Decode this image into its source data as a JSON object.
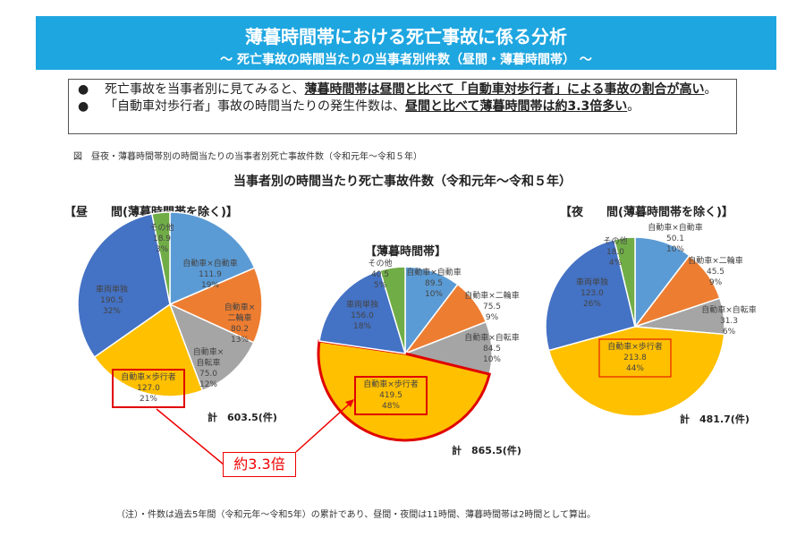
{
  "header": {
    "title": "薄暮時間帯における死亡事故に係る分析",
    "subtitle": "～ 死亡事故の時間当たりの当事者別件数（昼間・薄暮時間帯） ～"
  },
  "summary": [
    {
      "bullet": "●",
      "pre": "死亡事故を当事者別に見てみると、",
      "bold": "薄暮時間帯は昼間と比べて「自動車対歩行者」による事故の割合が高い",
      "post": "。"
    },
    {
      "bullet": "●",
      "pre": "「自動車対歩行者」事故の時間当たりの発生件数は、",
      "bold": "昼間と比べて薄暮時間帯は約3.3倍多い",
      "post": "。"
    }
  ],
  "figure_caption": "図　昼夜・薄暮時間帯別の時間当たりの当事者別死亡事故件数（令和元年～令和５年）",
  "note": "（注）・件数は過去5年間（令和元年～令和5年）の累計であり、昼間・夜間は11時間、薄暮時間帯は2時間として算出。",
  "annotation": "約3.3倍",
  "colors": {
    "自動車×自動車": "#5b9bd5",
    "自動車×二輪車": "#ed7d31",
    "自動車×自転車": "#a5a5a5",
    "自動車×歩行者": "#ffc000",
    "車両単独": "#4472c4",
    "その他": "#70ad47",
    "highlight": "#e00000"
  },
  "chart_data": {
    "type": "pie",
    "title": "当事者別の時間当たり死亡事故件数（令和元年～令和５年）",
    "categories": [
      "自動車×自動車",
      "自動車×二輪車",
      "自動車×自転車",
      "自動車×歩行者",
      "車両単独",
      "その他"
    ],
    "charts": [
      {
        "title": "【昼　　間(薄暮時間帯を除く)】",
        "values": [
          111.9,
          80.2,
          75.0,
          127.0,
          190.5,
          18.9
        ],
        "percents": [
          "19%",
          "13%",
          "12%",
          "21%",
          "32%",
          "3%"
        ],
        "total": "計　603.5(件)"
      },
      {
        "title": "【薄暮時間帯】",
        "values": [
          89.5,
          75.5,
          84.5,
          419.5,
          156.0,
          40.5
        ],
        "percents": [
          "10%",
          "9%",
          "10%",
          "48%",
          "18%",
          "5%"
        ],
        "total": "計　865.5(件)"
      },
      {
        "title": "【夜　　間(薄暮時間帯を除く)】",
        "values": [
          50.1,
          45.5,
          31.3,
          213.8,
          123.0,
          18.0
        ],
        "percents": [
          "10%",
          "9%",
          "6%",
          "44%",
          "26%",
          "4%"
        ],
        "total": "計　481.7(件)"
      }
    ]
  }
}
